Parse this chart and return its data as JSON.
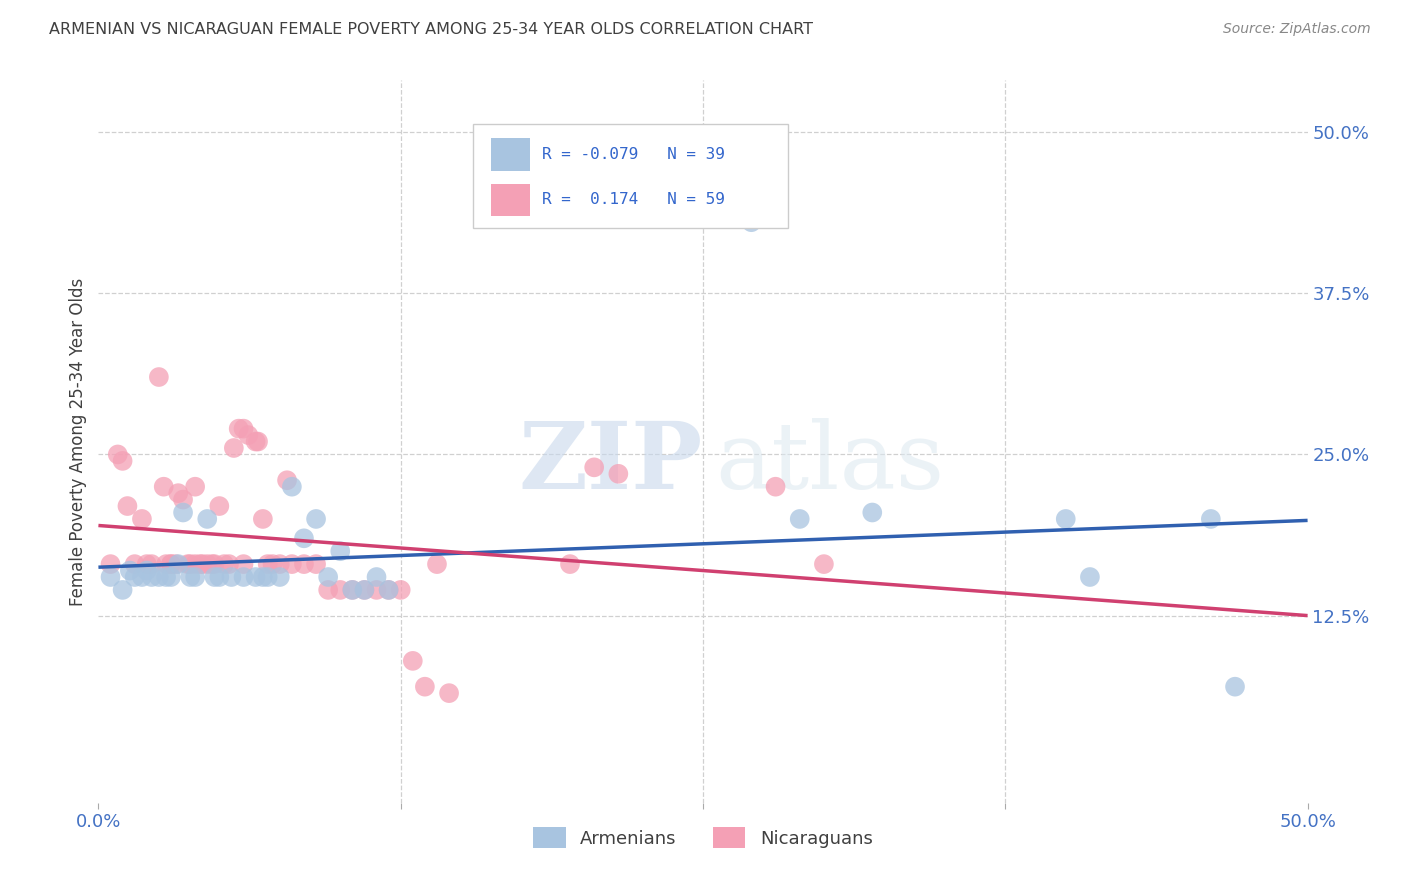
{
  "title": "ARMENIAN VS NICARAGUAN FEMALE POVERTY AMONG 25-34 YEAR OLDS CORRELATION CHART",
  "source": "Source: ZipAtlas.com",
  "ylabel": "Female Poverty Among 25-34 Year Olds",
  "xlim": [
    0.0,
    0.5
  ],
  "ylim": [
    -0.02,
    0.54
  ],
  "ytick_positions": [
    0.125,
    0.25,
    0.375,
    0.5
  ],
  "ytick_labels": [
    "12.5%",
    "25.0%",
    "37.5%",
    "50.0%"
  ],
  "armenian_color": "#a8c4e0",
  "nicaraguan_color": "#f4a0b5",
  "armenian_line_color": "#3060b0",
  "nicaraguan_line_color": "#d04070",
  "armenian_R": -0.079,
  "armenian_N": 39,
  "nicaraguan_R": 0.174,
  "nicaraguan_N": 59,
  "armenian_scatter": [
    [
      0.005,
      0.155
    ],
    [
      0.01,
      0.145
    ],
    [
      0.013,
      0.16
    ],
    [
      0.015,
      0.155
    ],
    [
      0.018,
      0.155
    ],
    [
      0.02,
      0.16
    ],
    [
      0.022,
      0.155
    ],
    [
      0.025,
      0.155
    ],
    [
      0.028,
      0.155
    ],
    [
      0.03,
      0.155
    ],
    [
      0.033,
      0.165
    ],
    [
      0.035,
      0.205
    ],
    [
      0.038,
      0.155
    ],
    [
      0.04,
      0.155
    ],
    [
      0.045,
      0.2
    ],
    [
      0.048,
      0.155
    ],
    [
      0.05,
      0.155
    ],
    [
      0.055,
      0.155
    ],
    [
      0.06,
      0.155
    ],
    [
      0.065,
      0.155
    ],
    [
      0.068,
      0.155
    ],
    [
      0.07,
      0.155
    ],
    [
      0.075,
      0.155
    ],
    [
      0.08,
      0.225
    ],
    [
      0.085,
      0.185
    ],
    [
      0.09,
      0.2
    ],
    [
      0.095,
      0.155
    ],
    [
      0.1,
      0.175
    ],
    [
      0.105,
      0.145
    ],
    [
      0.11,
      0.145
    ],
    [
      0.115,
      0.155
    ],
    [
      0.12,
      0.145
    ],
    [
      0.27,
      0.43
    ],
    [
      0.29,
      0.2
    ],
    [
      0.32,
      0.205
    ],
    [
      0.4,
      0.2
    ],
    [
      0.41,
      0.155
    ],
    [
      0.46,
      0.2
    ],
    [
      0.47,
      0.07
    ]
  ],
  "nicaraguan_scatter": [
    [
      0.005,
      0.165
    ],
    [
      0.008,
      0.25
    ],
    [
      0.01,
      0.245
    ],
    [
      0.012,
      0.21
    ],
    [
      0.015,
      0.165
    ],
    [
      0.018,
      0.2
    ],
    [
      0.02,
      0.165
    ],
    [
      0.022,
      0.165
    ],
    [
      0.025,
      0.31
    ],
    [
      0.027,
      0.225
    ],
    [
      0.028,
      0.165
    ],
    [
      0.03,
      0.165
    ],
    [
      0.03,
      0.165
    ],
    [
      0.032,
      0.165
    ],
    [
      0.033,
      0.22
    ],
    [
      0.035,
      0.215
    ],
    [
      0.037,
      0.165
    ],
    [
      0.038,
      0.165
    ],
    [
      0.04,
      0.165
    ],
    [
      0.04,
      0.225
    ],
    [
      0.042,
      0.165
    ],
    [
      0.043,
      0.165
    ],
    [
      0.045,
      0.165
    ],
    [
      0.047,
      0.165
    ],
    [
      0.048,
      0.165
    ],
    [
      0.05,
      0.21
    ],
    [
      0.052,
      0.165
    ],
    [
      0.054,
      0.165
    ],
    [
      0.056,
      0.255
    ],
    [
      0.058,
      0.27
    ],
    [
      0.06,
      0.27
    ],
    [
      0.06,
      0.165
    ],
    [
      0.062,
      0.265
    ],
    [
      0.065,
      0.26
    ],
    [
      0.066,
      0.26
    ],
    [
      0.068,
      0.2
    ],
    [
      0.07,
      0.165
    ],
    [
      0.072,
      0.165
    ],
    [
      0.075,
      0.165
    ],
    [
      0.078,
      0.23
    ],
    [
      0.08,
      0.165
    ],
    [
      0.085,
      0.165
    ],
    [
      0.09,
      0.165
    ],
    [
      0.095,
      0.145
    ],
    [
      0.1,
      0.145
    ],
    [
      0.105,
      0.145
    ],
    [
      0.11,
      0.145
    ],
    [
      0.115,
      0.145
    ],
    [
      0.12,
      0.145
    ],
    [
      0.125,
      0.145
    ],
    [
      0.13,
      0.09
    ],
    [
      0.135,
      0.07
    ],
    [
      0.14,
      0.165
    ],
    [
      0.145,
      0.065
    ],
    [
      0.195,
      0.165
    ],
    [
      0.205,
      0.24
    ],
    [
      0.215,
      0.235
    ],
    [
      0.28,
      0.225
    ],
    [
      0.3,
      0.165
    ]
  ],
  "watermark_zip": "ZIP",
  "watermark_atlas": "atlas",
  "background_color": "#ffffff",
  "grid_color": "#d0d0d0",
  "tick_label_color": "#4472c4",
  "title_color": "#404040",
  "ylabel_color": "#404040",
  "source_color": "#888888"
}
